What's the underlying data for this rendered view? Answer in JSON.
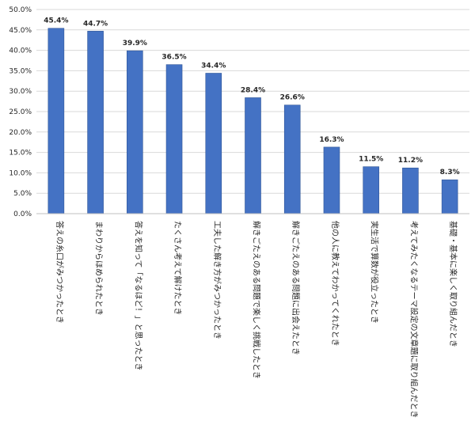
{
  "chart_data": {
    "type": "bar",
    "title": "",
    "xlabel": "",
    "ylabel": "",
    "categories": [
      "答えの糸口がみつかったとき",
      "まわりからほめられたとき",
      "答えを知って「なるほど！」と思ったとき",
      "たくさん考えて解けたとき",
      "工夫した解き方がみつかったとき",
      "解きごたえのある問題で楽しく挑戦したとき",
      "解きごたえのある問題に出会えたとき",
      "他の人に教えてわかってくれたとき",
      "実生活で算数が役立ったとき",
      "考えてみたくなるテーマ設定の文章題に取り組んだとき",
      "基礎・基本に楽しく取り組んだとき"
    ],
    "values": [
      45.4,
      44.7,
      39.9,
      36.5,
      34.4,
      28.4,
      26.6,
      16.3,
      11.5,
      11.2,
      8.3
    ],
    "data_labels": [
      "45.4%",
      "44.7%",
      "39.9%",
      "36.5%",
      "34.4%",
      "28.4%",
      "26.6%",
      "16.3%",
      "11.5%",
      "11.2%",
      "8.3%"
    ],
    "yticks": [
      "0.0%",
      "5.0%",
      "10.0%",
      "15.0%",
      "20.0%",
      "25.0%",
      "30.0%",
      "35.0%",
      "40.0%",
      "45.0%",
      "50.0%"
    ],
    "ylim": [
      0,
      50
    ],
    "grid": true,
    "legend": "none",
    "colors": {
      "bar": "#4472C4",
      "bar_edge": "#2F5597",
      "grid": "#D9D9D9",
      "axis": "#BFBFBF",
      "text": "#262626"
    }
  }
}
